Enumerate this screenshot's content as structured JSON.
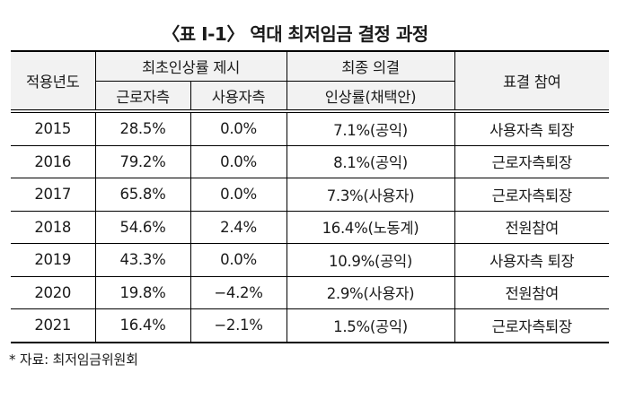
{
  "document": {
    "title": "〈표 Ⅰ-1〉 역대 최저임금 결정 과정",
    "footnote": "* 자료:  최저임금위원회"
  },
  "table": {
    "headers": {
      "year": "적용년도",
      "initial_proposal": "최초인상률 제시",
      "initial_proposal_sub": {
        "workers": "근로자측",
        "employers": "사용자측"
      },
      "final_decision": "최종 의결",
      "final_decision_sub": "인상률(채택안)",
      "vote_participation": "표결 참여"
    },
    "rows": [
      {
        "year": "2015",
        "workers": "28.5%",
        "employers": "0.0%",
        "final_rate": "7.1%(공익)",
        "participation": "사용자측  퇴장"
      },
      {
        "year": "2016",
        "workers": "79.2%",
        "employers": "0.0%",
        "final_rate": "8.1%(공익)",
        "participation": "근로자측퇴장"
      },
      {
        "year": "2017",
        "workers": "65.8%",
        "employers": "0.0%",
        "final_rate": "7.3%(사용자)",
        "participation": "근로자측퇴장"
      },
      {
        "year": "2018",
        "workers": "54.6%",
        "employers": "2.4%",
        "final_rate": "16.4%(노동계)",
        "participation": "전원참여"
      },
      {
        "year": "2019",
        "workers": "43.3%",
        "employers": "0.0%",
        "final_rate": "10.9%(공익)",
        "participation": "사용자측  퇴장"
      },
      {
        "year": "2020",
        "workers": "19.8%",
        "employers": "−4.2%",
        "final_rate": "2.9%(사용자)",
        "participation": "전원참여"
      },
      {
        "year": "2021",
        "workers": "16.4%",
        "employers": "−2.1%",
        "final_rate": "1.5%(공익)",
        "participation": "근로자측퇴장"
      }
    ]
  },
  "colors": {
    "header_background": "#f2f2f2",
    "border": "#000000",
    "text": "#1a1a1a"
  }
}
